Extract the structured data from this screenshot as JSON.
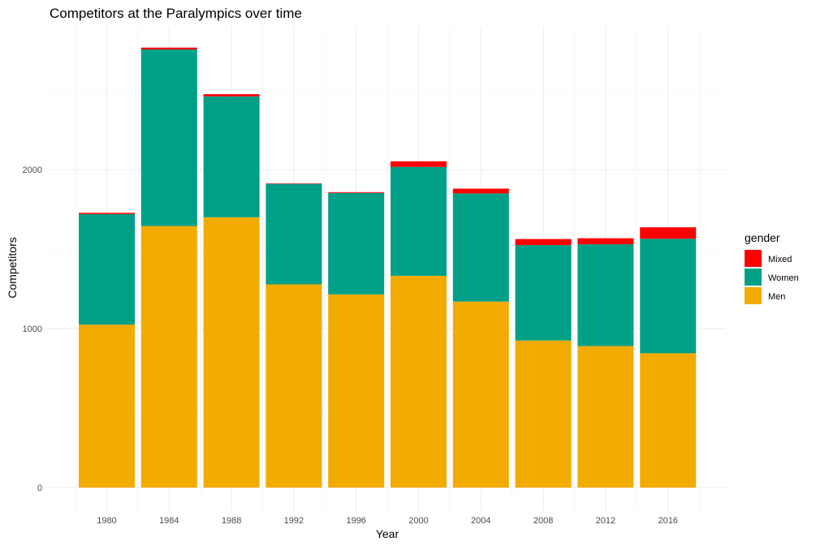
{
  "chart_data": {
    "type": "bar",
    "stacked": true,
    "title": "Competitors at the Paralympics over time",
    "xlabel": "Year",
    "ylabel": "Competitors",
    "categories": [
      "1980",
      "1984",
      "1988",
      "1992",
      "1996",
      "2000",
      "2004",
      "2008",
      "2012",
      "2016"
    ],
    "series": [
      {
        "name": "Men",
        "color": "#F2AB00",
        "values": [
          1025,
          1645,
          1700,
          1278,
          1215,
          1332,
          1170,
          925,
          890,
          845
        ]
      },
      {
        "name": "Women",
        "color": "#00A087",
        "values": [
          695,
          1110,
          760,
          632,
          638,
          685,
          680,
          600,
          640,
          720
        ]
      },
      {
        "name": "Mixed",
        "color": "#FF0000",
        "values": [
          8,
          12,
          14,
          3,
          5,
          35,
          30,
          38,
          38,
          72
        ]
      }
    ],
    "ylim": [
      0,
      2800
    ],
    "yticks": [
      "0",
      "1000",
      "2000"
    ],
    "grid": true,
    "legend": {
      "title": "gender",
      "position": "right",
      "entries": [
        {
          "label": "Mixed",
          "color": "#FF0000"
        },
        {
          "label": "Women",
          "color": "#00A087"
        },
        {
          "label": "Men",
          "color": "#F2AB00"
        }
      ]
    }
  }
}
